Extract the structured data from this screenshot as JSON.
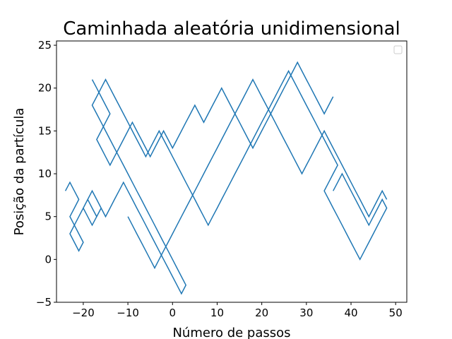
{
  "chart_data": {
    "type": "line",
    "title": "Caminhada aleatória unidimensional",
    "xlabel": "Número de passos",
    "ylabel": "Posição da partícula",
    "xlim": [
      -26,
      52.5
    ],
    "ylim": [
      -5,
      25.5
    ],
    "xticks": [
      -20,
      -10,
      0,
      10,
      20,
      30,
      40,
      50
    ],
    "xtick_labels": [
      "−20",
      "−10",
      "0",
      "10",
      "20",
      "30",
      "40",
      "50"
    ],
    "yticks": [
      -5,
      0,
      5,
      10,
      15,
      20,
      25
    ],
    "ytick_labels": [
      "−5",
      "0",
      "5",
      "10",
      "15",
      "20",
      "25"
    ],
    "grid": false,
    "legend": {
      "placement": "top-right",
      "entries": []
    },
    "colors": {
      "line": "#1f77b4"
    },
    "series": [
      {
        "x": [
          -24,
          -23,
          -22,
          -21,
          -22,
          -23,
          -22,
          -21,
          -20,
          -21,
          -22,
          -23,
          -22,
          -21,
          -20,
          -19,
          -18,
          -17,
          -16,
          -17,
          -18,
          -19,
          -20,
          -19,
          -18,
          -17,
          -16,
          -15,
          -14,
          -13,
          -12,
          -11,
          -10,
          -9,
          -8,
          -7,
          -6,
          -5,
          -4,
          -3,
          -2,
          -1,
          0,
          1,
          2,
          3,
          2,
          1,
          0,
          -1,
          -2,
          -3,
          -4,
          -5,
          -6,
          -7,
          -8,
          -9,
          -10,
          -11,
          -12,
          -13,
          -14,
          -15,
          -16,
          -17,
          -18,
          -17,
          -16,
          -15,
          -14,
          -13,
          -12,
          -11,
          -10,
          -9,
          -8,
          -7,
          -6,
          -5,
          -4,
          -3,
          -2,
          -1,
          0,
          1,
          2,
          3,
          4,
          5,
          6,
          7,
          8,
          9,
          10,
          11,
          12,
          13,
          14,
          15,
          16,
          17,
          18,
          19,
          20,
          21,
          22,
          23,
          24,
          25,
          26,
          27,
          28,
          29,
          30,
          31,
          32,
          33,
          34,
          35,
          36,
          37,
          36,
          35,
          34,
          35,
          36,
          37,
          38,
          39,
          40,
          41,
          42,
          43,
          44,
          45,
          46,
          47,
          48,
          47,
          46,
          45,
          44,
          43,
          42,
          41,
          40,
          39,
          38,
          37,
          36
        ],
        "y": [
          8,
          9,
          8,
          7,
          6,
          5,
          4,
          3,
          2,
          1,
          2,
          3,
          4,
          5,
          6,
          7,
          8,
          7,
          6,
          5,
          4,
          5,
          6,
          7,
          6,
          5,
          6,
          5,
          6,
          7,
          8,
          9,
          8,
          7,
          6,
          5,
          4,
          3,
          2,
          1,
          0,
          -1,
          -2,
          -3,
          -4,
          -3,
          -2,
          -1,
          0,
          1,
          2,
          3,
          4,
          5,
          6,
          7,
          8,
          9,
          10,
          11,
          12,
          13,
          14,
          15,
          16,
          17,
          18,
          19,
          20,
          21,
          20,
          19,
          18,
          17,
          16,
          15,
          14,
          13,
          12,
          13,
          14,
          15,
          14,
          13,
          12,
          11,
          10,
          9,
          8,
          7,
          6,
          5,
          4,
          5,
          6,
          7,
          8,
          9,
          10,
          11,
          12,
          13,
          14,
          15,
          16,
          17,
          18,
          19,
          20,
          21,
          22,
          21,
          20,
          19,
          18,
          17,
          16,
          15,
          14,
          13,
          12,
          11,
          10,
          9,
          8,
          7,
          6,
          5,
          4,
          3,
          2,
          1,
          0,
          1,
          2,
          3,
          4,
          5,
          6,
          7,
          6,
          5,
          4,
          5,
          6,
          7,
          8,
          9,
          10,
          9,
          8
        ]
      },
      {
        "x": [
          -18,
          -17,
          -16,
          -15,
          -14,
          -15,
          -16,
          -17,
          -16,
          -15,
          -14,
          -13,
          -12,
          -11,
          -10,
          -9,
          -8,
          -7,
          -6,
          -5,
          -4,
          -3,
          -2,
          -1,
          0,
          1,
          2,
          3,
          4,
          5,
          6,
          7,
          8,
          9,
          10,
          11,
          12,
          13,
          14,
          15,
          16,
          17,
          18,
          19,
          20,
          21,
          22,
          23,
          24,
          25,
          26,
          27,
          28,
          29,
          30,
          31,
          32,
          33,
          34,
          35,
          36
        ],
        "y": [
          21,
          20,
          19,
          18,
          17,
          16,
          15,
          14,
          13,
          12,
          11,
          12,
          13,
          14,
          15,
          16,
          15,
          14,
          13,
          12,
          13,
          14,
          15,
          14,
          13,
          14,
          15,
          16,
          17,
          18,
          17,
          16,
          17,
          18,
          19,
          20,
          19,
          18,
          17,
          16,
          15,
          14,
          13,
          14,
          15,
          16,
          17,
          18,
          19,
          20,
          21,
          22,
          23,
          22,
          21,
          20,
          19,
          18,
          17,
          18,
          19
        ]
      },
      {
        "x": [
          -10,
          -9,
          -8,
          -7,
          -6,
          -5,
          -4,
          -3,
          -2,
          -1,
          0,
          1,
          2,
          3,
          4,
          5,
          6,
          7,
          8,
          9,
          10,
          11,
          12,
          13,
          14,
          15,
          16,
          17,
          18,
          19,
          20,
          21,
          22,
          23,
          24,
          25,
          26,
          27,
          28,
          29,
          30,
          31,
          32,
          33,
          34,
          35,
          36,
          37,
          38,
          39,
          40,
          41,
          42,
          43,
          44,
          45,
          46,
          47,
          48
        ],
        "y": [
          5,
          4,
          3,
          2,
          1,
          0,
          -1,
          0,
          1,
          2,
          3,
          4,
          5,
          6,
          7,
          8,
          9,
          10,
          11,
          12,
          13,
          14,
          15,
          16,
          17,
          18,
          19,
          20,
          21,
          20,
          19,
          18,
          17,
          16,
          15,
          14,
          13,
          12,
          11,
          10,
          11,
          12,
          13,
          14,
          15,
          14,
          13,
          12,
          11,
          10,
          9,
          8,
          7,
          6,
          5,
          6,
          7,
          8,
          7
        ]
      }
    ]
  }
}
